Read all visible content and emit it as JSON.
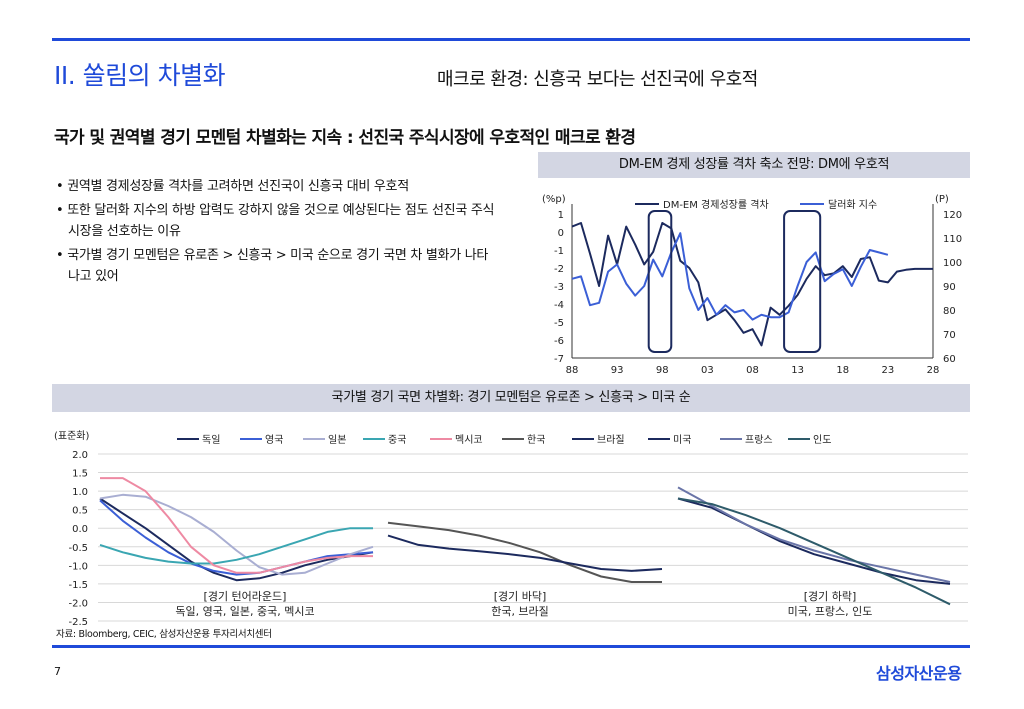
{
  "header": {
    "section_title": "II. 쏠림의 차별화",
    "subtitle": "매크로 환경: 신흥국 보다는 선진국에 우호적"
  },
  "headline": "국가 및 권역별 경기 모멘텀 차별화는 지속 : 선진국 주식시장에 우호적인 매크로 환경",
  "bullets": [
    "권역별 경제성장률 격차를 고려하면 선진국이 신흥국 대비 우호적",
    "또한 달러화 지수의 하방 압력도 강하지 않을 것으로 예상된다는 점도 선진국 주식시장을 선호하는 이유",
    "국가별 경기 모멘텀은 유로존 > 신흥국 > 미국 순으로 경기 국면 차 별화가 나타나고 있어"
  ],
  "chart1_title": "DM-EM 경제 성장률 격차 축소 전망: DM에 우호적",
  "chart2_title": "국가별 경기 국면 차별화: 경기 모멘텀은 유로존 > 신흥국 > 미국 순",
  "source": "자료: Bloomberg, CEIC, 삼성자산운용 투자리서치센터",
  "page_number": "7",
  "brand": "삼성자산운용",
  "colors": {
    "accent": "#1f4ad9",
    "navy": "#1c2a5e",
    "banner": "#d3d6e3"
  },
  "chart_data": [
    {
      "type": "line",
      "title": "DM-EM 경제 성장률 격차 축소 전망: DM에 우호적",
      "left_unit": "(%p)",
      "right_unit": "(P)",
      "ylim": [
        -7,
        1
      ],
      "ylim_right": [
        60,
        120
      ],
      "left_ticks": [
        "1",
        "0",
        "-1",
        "-2",
        "-3",
        "-4",
        "-5",
        "-6",
        "-7"
      ],
      "right_ticks": [
        "120",
        "110",
        "100",
        "90",
        "80",
        "70",
        "60"
      ],
      "x_ticks": [
        "88",
        "93",
        "98",
        "03",
        "08",
        "13",
        "18",
        "23",
        "28"
      ],
      "xlim": [
        1988,
        2028
      ],
      "highlight_ranges": [
        [
          1996.5,
          1999.0
        ],
        [
          2011.5,
          2015.5
        ]
      ],
      "series": [
        {
          "name": "DM-EM 경제성장률 격차",
          "color": "#1c2a5e",
          "axis": "left",
          "x": [
            1988,
            1989,
            1990,
            1991,
            1992,
            1993,
            1994,
            1995,
            1996,
            1997,
            1998,
            1999,
            2000,
            2001,
            2002,
            2003,
            2004,
            2005,
            2006,
            2007,
            2008,
            2009,
            2010,
            2011,
            2012,
            2013,
            2014,
            2015,
            2016,
            2017,
            2018,
            2019,
            2020,
            2021,
            2022,
            2023,
            2024,
            2025,
            2026,
            2027,
            2028
          ],
          "y": [
            0.3,
            0.5,
            -1.2,
            -3.0,
            -0.2,
            -1.8,
            0.3,
            -0.7,
            -1.8,
            -1.1,
            0.5,
            0.2,
            -1.6,
            -2.0,
            -2.8,
            -4.9,
            -4.6,
            -4.3,
            -4.9,
            -5.6,
            -5.4,
            -6.3,
            -4.2,
            -4.6,
            -4.1,
            -3.5,
            -2.6,
            -1.9,
            -2.4,
            -2.3,
            -1.9,
            -2.5,
            -1.5,
            -1.4,
            -2.7,
            -2.8,
            -2.2,
            -2.1,
            -2.05,
            -2.05,
            -2.05
          ]
        },
        {
          "name": "달러화 지수",
          "color": "#3b5fd6",
          "axis": "right",
          "x": [
            1988,
            1989,
            1990,
            1991,
            1992,
            1993,
            1994,
            1995,
            1996,
            1997,
            1998,
            1999,
            2000,
            2001,
            2002,
            2003,
            2004,
            2005,
            2006,
            2007,
            2008,
            2009,
            2010,
            2011,
            2012,
            2013,
            2014,
            2015,
            2016,
            2017,
            2018,
            2019,
            2020,
            2021,
            2022,
            2023
          ],
          "y": [
            93,
            94,
            82,
            83,
            96,
            99,
            91,
            86,
            90,
            101,
            94,
            104,
            112,
            89,
            80,
            85,
            78,
            82,
            79,
            80,
            76,
            78,
            77,
            77,
            79,
            90,
            100,
            104,
            92,
            95,
            97,
            90,
            98,
            105,
            104,
            103
          ]
        }
      ]
    },
    {
      "type": "line",
      "title": "국가별 경기 국면 차별화: 경기 모멘텀은 유로존 > 신흥국 > 미국 순",
      "ylabel": "(표준화)",
      "ylim": [
        -2.5,
        2.0
      ],
      "y_ticks": [
        "2.0",
        "1.5",
        "1.0",
        "0.5",
        "0.0",
        "-0.5",
        "-1.0",
        "-1.5",
        "-2.0",
        "-2.5"
      ],
      "legend": [
        "독일",
        "영국",
        "일본",
        "중국",
        "멕시코",
        "한국",
        "브라질",
        "미국",
        "프랑스",
        "인도"
      ],
      "groups": [
        {
          "label": "[경기 턴어라운드]",
          "members": "독일, 영국, 일본, 중국, 멕시코"
        },
        {
          "label": "[경기 바닥]",
          "members": "한국, 브라질"
        },
        {
          "label": "[경기 하락]",
          "members": "미국, 프랑스, 인도"
        }
      ],
      "series": [
        {
          "name": "독일",
          "color": "#1c2a5e",
          "group": 0,
          "values": [
            0.8,
            0.4,
            0.0,
            -0.45,
            -0.9,
            -1.2,
            -1.4,
            -1.35,
            -1.2,
            -1.0,
            -0.85,
            -0.75,
            -0.65
          ]
        },
        {
          "name": "영국",
          "color": "#3b5fd6",
          "group": 0,
          "values": [
            0.75,
            0.2,
            -0.25,
            -0.65,
            -0.95,
            -1.15,
            -1.25,
            -1.2,
            -1.05,
            -0.9,
            -0.75,
            -0.7,
            -0.65
          ]
        },
        {
          "name": "일본",
          "color": "#a9aed2",
          "group": 0,
          "values": [
            0.8,
            0.9,
            0.85,
            0.6,
            0.3,
            -0.1,
            -0.6,
            -1.05,
            -1.25,
            -1.2,
            -0.95,
            -0.7,
            -0.5
          ]
        },
        {
          "name": "중국",
          "color": "#3aa6b2",
          "group": 0,
          "values": [
            -0.45,
            -0.65,
            -0.8,
            -0.9,
            -0.95,
            -0.95,
            -0.85,
            -0.7,
            -0.5,
            -0.3,
            -0.1,
            0.0,
            0.0
          ]
        },
        {
          "name": "멕시코",
          "color": "#ee8aa3",
          "group": 0,
          "values": [
            1.35,
            1.35,
            1.0,
            0.3,
            -0.5,
            -1.0,
            -1.2,
            -1.2,
            -1.05,
            -0.9,
            -0.8,
            -0.75,
            -0.75
          ]
        },
        {
          "name": "한국",
          "color": "#555555",
          "group": 1,
          "values": [
            0.15,
            0.05,
            -0.05,
            -0.2,
            -0.4,
            -0.65,
            -1.0,
            -1.3,
            -1.45,
            -1.45
          ]
        },
        {
          "name": "브라질",
          "color": "#1c2a5e",
          "group": 1,
          "values": [
            -0.2,
            -0.45,
            -0.55,
            -0.62,
            -0.7,
            -0.8,
            -0.95,
            -1.1,
            -1.15,
            -1.1
          ]
        },
        {
          "name": "미국",
          "color": "#1c2a5e",
          "group": 2,
          "values": [
            0.8,
            0.55,
            0.1,
            -0.35,
            -0.7,
            -0.95,
            -1.2,
            -1.4,
            -1.5
          ]
        },
        {
          "name": "프랑스",
          "color": "#6a75a8",
          "group": 2,
          "values": [
            1.1,
            0.6,
            0.1,
            -0.3,
            -0.6,
            -0.85,
            -1.05,
            -1.25,
            -1.45
          ]
        },
        {
          "name": "인도",
          "color": "#2e5b6a",
          "group": 2,
          "values": [
            0.8,
            0.65,
            0.35,
            0.0,
            -0.4,
            -0.8,
            -1.2,
            -1.6,
            -2.05
          ]
        }
      ]
    }
  ]
}
